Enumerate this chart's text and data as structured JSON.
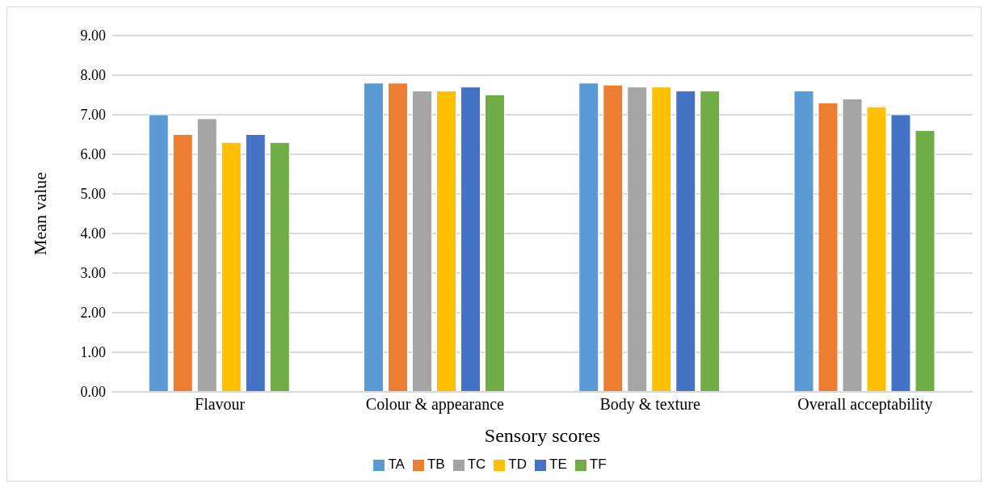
{
  "chart_data": {
    "type": "bar",
    "xlabel": "Sensory scores",
    "ylabel": "Mean value",
    "categories": [
      "Flavour",
      "Colour & appearance",
      "Body & texture",
      "Overall acceptability"
    ],
    "series": [
      {
        "name": "TA",
        "color": "#5b9bd5",
        "values": [
          7.0,
          7.8,
          7.8,
          7.6
        ]
      },
      {
        "name": "TB",
        "color": "#ed7d31",
        "values": [
          6.5,
          7.8,
          7.75,
          7.3
        ]
      },
      {
        "name": "TC",
        "color": "#a5a5a5",
        "values": [
          6.9,
          7.6,
          7.7,
          7.4
        ]
      },
      {
        "name": "TD",
        "color": "#ffc000",
        "values": [
          6.3,
          7.6,
          7.7,
          7.2
        ]
      },
      {
        "name": "TE",
        "color": "#4472c4",
        "values": [
          6.5,
          7.7,
          7.6,
          7.0
        ]
      },
      {
        "name": "TF",
        "color": "#70ad47",
        "values": [
          6.3,
          7.5,
          7.6,
          6.6
        ]
      }
    ],
    "ylim": [
      0,
      9
    ],
    "yticks": [
      {
        "value": 0,
        "label": "0.00"
      },
      {
        "value": 1,
        "label": "1.00"
      },
      {
        "value": 2,
        "label": "2.00"
      },
      {
        "value": 3,
        "label": "3.00"
      },
      {
        "value": 4,
        "label": "4.00"
      },
      {
        "value": 5,
        "label": "5.00"
      },
      {
        "value": 6,
        "label": "6.00"
      },
      {
        "value": 7,
        "label": "7.00"
      },
      {
        "value": 8,
        "label": "8.00"
      },
      {
        "value": 9,
        "label": "9.00"
      }
    ],
    "grid": "y",
    "legend": "bottom"
  }
}
